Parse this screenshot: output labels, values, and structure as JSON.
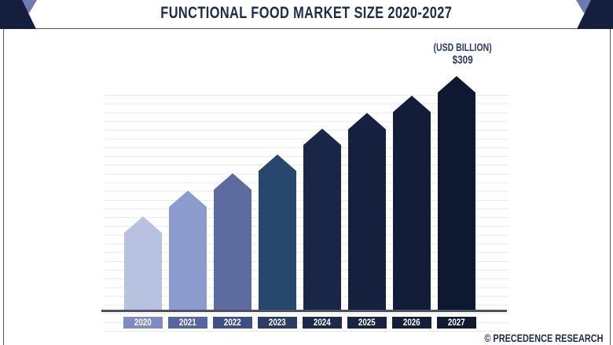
{
  "header": {
    "title": "FUNCTIONAL FOOD MARKET SIZE 2020-2027"
  },
  "annotation": {
    "unit_label": "(USD BILLION)",
    "value_label": "$309"
  },
  "footer": {
    "credit": "© PRECEDENCE RESEARCH"
  },
  "colors": {
    "title_text": "#1c2b4e",
    "panel_border": "#4a507a",
    "axis_line": "#4b5264",
    "gridline": "#e9e9ee",
    "corner_dark": "#151e3e",
    "corner_light": "#6f7aae",
    "annotation_text": "#273a6b",
    "year_label_text": "#ffffff"
  },
  "chart_data": {
    "type": "bar",
    "title": "FUNCTIONAL FOOD MARKET SIZE 2020-2027",
    "unit": "USD Billion",
    "categories": [
      "2020",
      "2021",
      "2022",
      "2023",
      "2024",
      "2025",
      "2026",
      "2027"
    ],
    "values": [
      125,
      159,
      182,
      206,
      240,
      261,
      283,
      309
    ],
    "labeled_values": {
      "2027": "$309"
    },
    "bar_colors": [
      "#b8c2e0",
      "#8c9cce",
      "#5d6b9e",
      "#28476c",
      "#1a2647",
      "#162140",
      "#131d3a",
      "#0e1830"
    ],
    "label_box_colors": [
      "#7e8cc2",
      "#5765a0",
      "#404e88",
      "#2b3d62",
      "#1c2a4b",
      "#182442",
      "#141f3a",
      "#101a30"
    ],
    "bar_shape": "pentagon-pointed-top",
    "xlabel": "",
    "ylabel": "",
    "ylim": [
      0,
      320
    ],
    "grid": "horizontal",
    "legend": "none",
    "annotations": [
      "(USD BILLION)",
      "$309"
    ]
  }
}
